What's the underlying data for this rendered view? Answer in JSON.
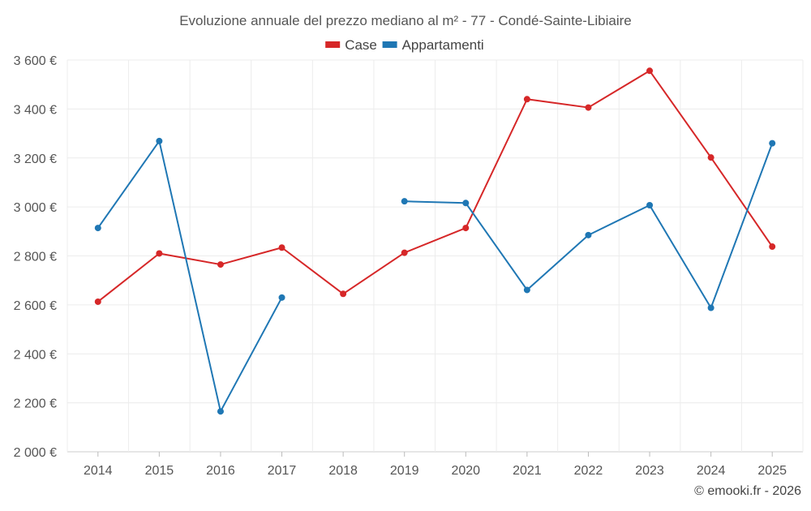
{
  "chart_data": {
    "type": "line",
    "title": "Evoluzione annuale del prezzo mediano al m² - 77 - Condé-Sainte-Libiaire",
    "xlabel": "",
    "ylabel": "",
    "categories": [
      "2014",
      "2015",
      "2016",
      "2017",
      "2018",
      "2019",
      "2020",
      "2021",
      "2022",
      "2023",
      "2024",
      "2025"
    ],
    "ylim": [
      2000,
      3600
    ],
    "y_ticks": [
      2000,
      2200,
      2400,
      2600,
      2800,
      3000,
      3200,
      3400,
      3600
    ],
    "y_tick_labels": [
      "2 000 €",
      "2 200 €",
      "2 400 €",
      "2 600 €",
      "2 800 €",
      "3 000 €",
      "3 200 €",
      "3 400 €",
      "3 600 €"
    ],
    "grid": true,
    "legend_position": "top-center",
    "series": [
      {
        "name": "Case",
        "color": "#d62728",
        "values": [
          2613,
          2810,
          2765,
          2834,
          2645,
          2813,
          2914,
          3440,
          3406,
          3556,
          3202,
          2838
        ]
      },
      {
        "name": "Appartamenti",
        "color": "#1f77b4",
        "values": [
          2914,
          3269,
          2165,
          2630,
          null,
          3023,
          3016,
          2661,
          2885,
          3007,
          2588,
          3260
        ]
      }
    ]
  },
  "footer": {
    "credit": "© emooki.fr - 2026"
  }
}
